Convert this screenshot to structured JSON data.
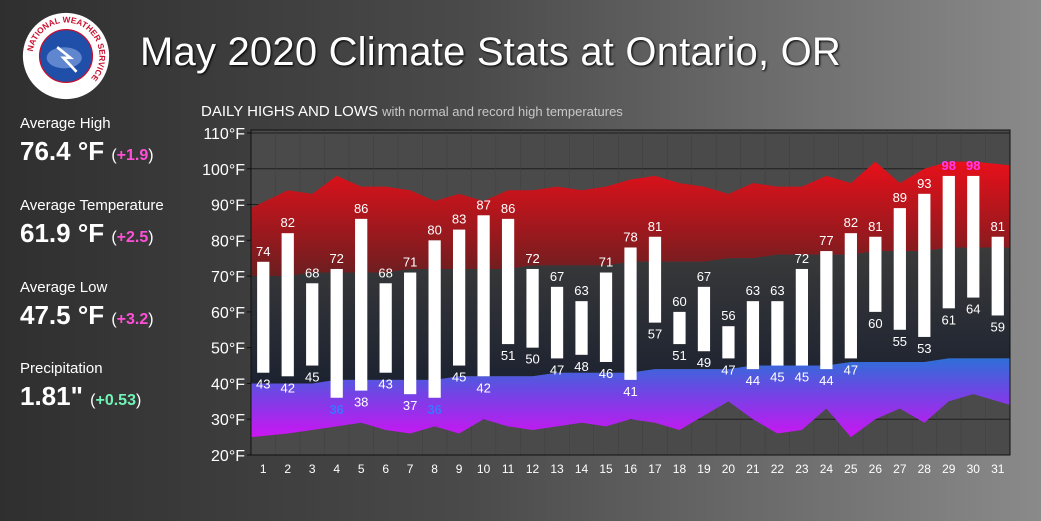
{
  "title": "May 2020 Climate Stats at Ontario, OR",
  "logo": {
    "text": "NATIONAL WEATHER SERVICE",
    "icon": "nws-logo-icon"
  },
  "stats": [
    {
      "label": "Average High",
      "value": "76.4 °F",
      "departure": "+1.9",
      "color": "#ff4fd8"
    },
    {
      "label": "Average Temperature",
      "value": "61.9 °F",
      "departure": "+2.5",
      "color": "#ff4fd8"
    },
    {
      "label": "Average Low",
      "value": "47.5 °F",
      "departure": "+3.2",
      "color": "#ff4fd8"
    },
    {
      "label": "Precipitation",
      "value": "1.81\"",
      "departure": "+0.53",
      "color": "#6ff5b6"
    }
  ],
  "chart_subtitle": {
    "main": "DAILY HIGHS AND LOWS",
    "sub": "with normal and record high temperatures"
  },
  "chart_data": {
    "type": "bar",
    "title": "DAILY HIGHS AND LOWS",
    "subtitle": "with normal and record high temperatures",
    "xlabel": "",
    "ylabel": "",
    "ylim": [
      20,
      110
    ],
    "yticks": [
      "20°F",
      "30°F",
      "40°F",
      "50°F",
      "60°F",
      "70°F",
      "80°F",
      "90°F",
      "100°F",
      "110°F"
    ],
    "categories": [
      "1",
      "2",
      "3",
      "4",
      "5",
      "6",
      "7",
      "8",
      "9",
      "10",
      "11",
      "12",
      "13",
      "14",
      "15",
      "16",
      "17",
      "18",
      "19",
      "20",
      "21",
      "22",
      "23",
      "24",
      "25",
      "26",
      "27",
      "28",
      "29",
      "30",
      "31"
    ],
    "highs": [
      74,
      82,
      68,
      72,
      86,
      68,
      71,
      80,
      83,
      87,
      86,
      72,
      67,
      63,
      71,
      78,
      81,
      60,
      67,
      56,
      63,
      63,
      72,
      77,
      82,
      81,
      89,
      93,
      98,
      98,
      81
    ],
    "lows": [
      43,
      42,
      45,
      36,
      38,
      43,
      37,
      36,
      45,
      42,
      51,
      50,
      47,
      48,
      46,
      41,
      57,
      51,
      49,
      47,
      44,
      45,
      45,
      44,
      47,
      60,
      55,
      53,
      61,
      64,
      59
    ],
    "record_low_days": [
      4,
      8
    ],
    "record_high_days": [
      29,
      30
    ],
    "record_highs": [
      89,
      94,
      93,
      98,
      95,
      95,
      94,
      91,
      93,
      91,
      94,
      94,
      95,
      94,
      95,
      97,
      98,
      96,
      95,
      93,
      96,
      95,
      95,
      98,
      96,
      102,
      96,
      100,
      102,
      102,
      101
    ],
    "normal_highs": [
      70,
      70,
      71,
      71,
      71,
      71,
      72,
      72,
      72,
      72,
      72,
      73,
      73,
      73,
      73,
      74,
      74,
      74,
      74,
      75,
      75,
      76,
      76,
      76,
      76,
      77,
      77,
      77,
      78,
      78,
      78
    ],
    "normal_lows": [
      40,
      40,
      40,
      41,
      41,
      41,
      41,
      41,
      42,
      42,
      42,
      42,
      43,
      43,
      43,
      43,
      44,
      44,
      44,
      44,
      45,
      45,
      45,
      45,
      46,
      46,
      46,
      46,
      47,
      47,
      47
    ],
    "record_lows": [
      25,
      26,
      27,
      28,
      29,
      27,
      26,
      28,
      26,
      30,
      28,
      27,
      28,
      29,
      28,
      30,
      29,
      27,
      31,
      35,
      30,
      26,
      27,
      33,
      25,
      30,
      33,
      29,
      35,
      37,
      34
    ],
    "colors": {
      "record_high": "#e0211f",
      "normal_band": "#2e2e2e",
      "normal_low": "#2f6fd6",
      "record_low": "#d11bf5",
      "bar": "#ffffff",
      "record_high_label": "#ff3cf0",
      "record_low_label": "#3d73ff"
    }
  }
}
